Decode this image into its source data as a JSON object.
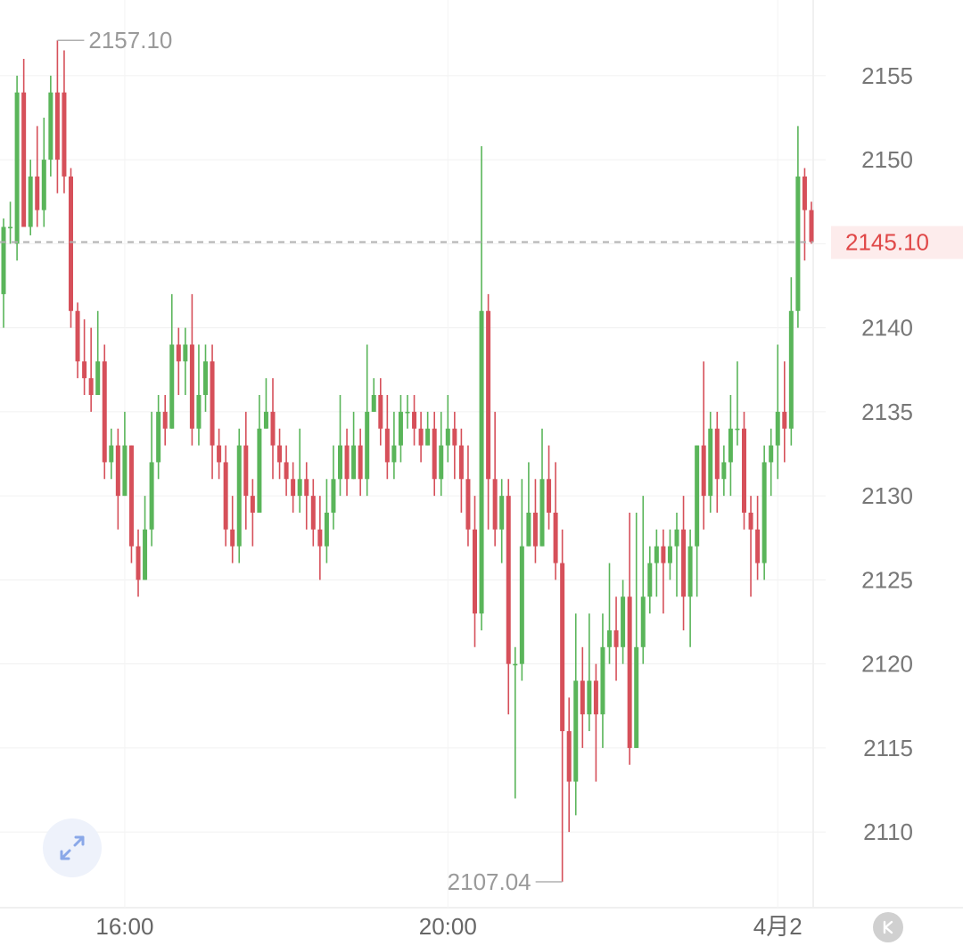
{
  "chart_data": {
    "type": "candlestick",
    "title": "",
    "xlabel": "",
    "ylabel": "",
    "ylim": [
      2105.5,
      2159.5
    ],
    "y_ticks": [
      "2155",
      "2150",
      "2145",
      "2140",
      "2135",
      "2130",
      "2125",
      "2120",
      "2115",
      "2110"
    ],
    "x_ticks": [
      {
        "label": "16:00",
        "index": 18
      },
      {
        "label": "20:00",
        "index": 66
      },
      {
        "label": "4月2",
        "index": 115
      }
    ],
    "high_label": "2157.10",
    "low_label": "2107.04",
    "last_price_label": "2145.10",
    "last_price": 2145.1,
    "grid": true,
    "colors": {
      "up": "#5ab55a",
      "down": "#d6505a",
      "last_price": "#e04848",
      "last_price_bg": "#fdecec",
      "grid": "#f0f0f0"
    },
    "candles": [
      [
        2142,
        2146,
        2140,
        2146.5
      ],
      [
        2146,
        2146,
        2145,
        2147.5
      ],
      [
        2145,
        2154,
        2144,
        2155
      ],
      [
        2154,
        2146,
        2146,
        2156
      ],
      [
        2146,
        2149,
        2145.5,
        2150
      ],
      [
        2149,
        2147,
        2146,
        2152
      ],
      [
        2147,
        2150,
        2146,
        2152.5
      ],
      [
        2150,
        2154,
        2149,
        2155
      ],
      [
        2154,
        2150,
        2148,
        2157.1
      ],
      [
        2154,
        2149,
        2148,
        2156.5
      ],
      [
        2149,
        2141,
        2140,
        2149.5
      ],
      [
        2141,
        2138,
        2137,
        2141.5
      ],
      [
        2138,
        2137,
        2136,
        2140.5
      ],
      [
        2137,
        2136,
        2135,
        2140
      ],
      [
        2136,
        2138,
        2136,
        2141
      ],
      [
        2138,
        2132,
        2131,
        2139
      ],
      [
        2132,
        2133,
        2131,
        2134
      ],
      [
        2133,
        2130,
        2128,
        2134
      ],
      [
        2130,
        2133,
        2130,
        2135
      ],
      [
        2133,
        2127,
        2126,
        2133
      ],
      [
        2127,
        2125,
        2124,
        2128
      ],
      [
        2125,
        2128,
        2125,
        2130
      ],
      [
        2128,
        2132,
        2127,
        2135
      ],
      [
        2132,
        2135,
        2131,
        2136
      ],
      [
        2135,
        2134,
        2133,
        2136
      ],
      [
        2134,
        2139,
        2134,
        2142
      ],
      [
        2139,
        2138,
        2136,
        2140
      ],
      [
        2138,
        2139,
        2136,
        2140
      ],
      [
        2139,
        2134,
        2133,
        2142
      ],
      [
        2134,
        2136,
        2133,
        2139
      ],
      [
        2136,
        2138,
        2135,
        2139
      ],
      [
        2138,
        2133,
        2131,
        2139
      ],
      [
        2133,
        2132,
        2131,
        2134
      ],
      [
        2132,
        2128,
        2127,
        2133
      ],
      [
        2128,
        2127,
        2126,
        2130
      ],
      [
        2127,
        2133,
        2126,
        2134
      ],
      [
        2133,
        2130,
        2128,
        2135
      ],
      [
        2130,
        2129,
        2127,
        2131
      ],
      [
        2129,
        2134,
        2129,
        2136
      ],
      [
        2134,
        2135,
        2134,
        2137
      ],
      [
        2135,
        2133,
        2131,
        2137
      ],
      [
        2133,
        2132,
        2131,
        2134
      ],
      [
        2132,
        2131,
        2130,
        2133
      ],
      [
        2131,
        2130,
        2129,
        2132
      ],
      [
        2130,
        2131,
        2129,
        2134
      ],
      [
        2131,
        2130,
        2128,
        2132
      ],
      [
        2130,
        2128,
        2127,
        2131
      ],
      [
        2128,
        2127,
        2125,
        2130
      ],
      [
        2127,
        2129,
        2126,
        2131
      ],
      [
        2129,
        2131,
        2128,
        2133
      ],
      [
        2131,
        2133,
        2130,
        2136
      ],
      [
        2133,
        2131,
        2130,
        2134
      ],
      [
        2131,
        2133,
        2131,
        2135
      ],
      [
        2133,
        2131,
        2130,
        2134
      ],
      [
        2131,
        2135,
        2130,
        2139
      ],
      [
        2135,
        2136,
        2135,
        2137
      ],
      [
        2136,
        2134,
        2133,
        2137
      ],
      [
        2134,
        2132,
        2131,
        2136
      ],
      [
        2132,
        2133,
        2131,
        2135
      ],
      [
        2133,
        2135,
        2132,
        2136
      ],
      [
        2135,
        2135,
        2134,
        2136
      ],
      [
        2135,
        2134,
        2133,
        2136
      ],
      [
        2134,
        2133,
        2132,
        2135
      ],
      [
        2133,
        2134,
        2133,
        2135
      ],
      [
        2134,
        2131,
        2130,
        2135
      ],
      [
        2131,
        2133,
        2130,
        2135
      ],
      [
        2133,
        2134,
        2132,
        2136
      ],
      [
        2134,
        2133,
        2131,
        2135
      ],
      [
        2133,
        2131,
        2129,
        2134
      ],
      [
        2131,
        2128,
        2127,
        2133
      ],
      [
        2128,
        2123,
        2121,
        2130
      ],
      [
        2123,
        2141,
        2122,
        2150.8
      ],
      [
        2141,
        2131,
        2128,
        2142
      ],
      [
        2131,
        2128,
        2127,
        2135
      ],
      [
        2128,
        2130,
        2126,
        2131
      ],
      [
        2130,
        2120,
        2117,
        2131
      ],
      [
        2120,
        2120,
        2112,
        2121
      ],
      [
        2120,
        2127,
        2119,
        2131
      ],
      [
        2127,
        2129,
        2127,
        2132
      ],
      [
        2129,
        2127,
        2126,
        2131
      ],
      [
        2127,
        2131,
        2127,
        2134
      ],
      [
        2131,
        2129,
        2128,
        2133
      ],
      [
        2129,
        2126,
        2125,
        2132
      ],
      [
        2126,
        2116,
        2107.04,
        2128
      ],
      [
        2116,
        2113,
        2110,
        2118
      ],
      [
        2113,
        2119,
        2111,
        2123
      ],
      [
        2119,
        2117,
        2115,
        2121
      ],
      [
        2117,
        2119,
        2116,
        2123
      ],
      [
        2119,
        2117,
        2113,
        2120
      ],
      [
        2117,
        2121,
        2115,
        2123
      ],
      [
        2121,
        2122,
        2120,
        2126
      ],
      [
        2122,
        2121,
        2119,
        2124
      ],
      [
        2121,
        2124,
        2120,
        2125
      ],
      [
        2124,
        2115,
        2114,
        2129
      ],
      [
        2115,
        2121,
        2115,
        2129
      ],
      [
        2121,
        2124,
        2120,
        2130
      ],
      [
        2124,
        2126,
        2123,
        2127
      ],
      [
        2126,
        2127,
        2124,
        2128
      ],
      [
        2127,
        2126,
        2123,
        2128
      ],
      [
        2126,
        2127,
        2125,
        2128
      ],
      [
        2127,
        2128,
        2124,
        2129
      ],
      [
        2128,
        2124,
        2122,
        2130
      ],
      [
        2124,
        2127,
        2121,
        2128
      ],
      [
        2127,
        2133,
        2124,
        2133
      ],
      [
        2133,
        2130,
        2128,
        2138
      ],
      [
        2130,
        2134,
        2129,
        2135
      ],
      [
        2134,
        2131,
        2129,
        2135
      ],
      [
        2131,
        2132,
        2130,
        2133
      ],
      [
        2132,
        2134,
        2130,
        2136
      ],
      [
        2134,
        2134,
        2133,
        2138
      ],
      [
        2134,
        2129,
        2128,
        2135
      ],
      [
        2129,
        2128,
        2124,
        2130
      ],
      [
        2128,
        2126,
        2125,
        2130
      ],
      [
        2126,
        2132,
        2125,
        2133
      ],
      [
        2132,
        2133,
        2130,
        2134
      ],
      [
        2133,
        2135,
        2131,
        2139
      ],
      [
        2135,
        2134,
        2132,
        2138
      ],
      [
        2134,
        2141,
        2133,
        2143
      ],
      [
        2141,
        2149,
        2140,
        2152
      ],
      [
        2149,
        2147,
        2144,
        2149.5
      ],
      [
        2147,
        2145.1,
        2145,
        2147.5
      ]
    ]
  },
  "controls": {
    "expand_icon": "expand-arrows-icon",
    "k_icon": "k-line-toggle-icon"
  }
}
